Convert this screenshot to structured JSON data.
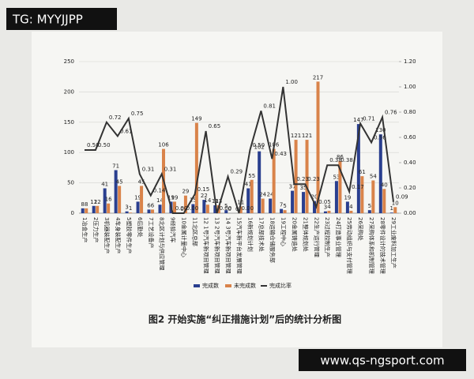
{
  "chart_data": {
    "type": "bar-line",
    "title": "图2  开始实施“纠正措施计划”后的统计分析图",
    "categories": [
      "1冶金生产",
      "2压力生产",
      "3机器装配生产",
      "4车身装配生产",
      "5塑胶零件生产",
      "6后勤处",
      "7工艺设备产",
      "8北区计划与供应管理",
      "9经验汽车",
      "10金属计量中心",
      "11北区总部",
      "12 1号汽车新项目管理",
      "13 2号汽车新项目管理",
      "14 3号汽车新项目管理",
      "15汽车新平台发展管理",
      "16新规划计划",
      "17总部技术处",
      "18运输仓储服务部",
      "19工程中心",
      "20金属铸造处",
      "21整体规划处",
      "22生产运行管理",
      "23过程控制生产",
      "24打造事业管理",
      "25劳动组织与支付管理",
      "26采购处",
      "27采购体系和机制管理",
      "28零件设计的技术管理",
      "29工业废料加工生产"
    ],
    "series": [
      {
        "name": "完成数",
        "color": "#2a3f8f",
        "values": [
          8,
          12,
          41,
          71,
          3,
          19,
          6,
          14,
          19,
          0,
          15,
          22,
          13,
          5,
          0,
          41,
          102,
          24,
          7,
          37,
          35,
          20,
          3,
          53,
          19,
          147,
          5,
          130,
          1
        ]
      },
      {
        "name": "未完成数",
        "color": "#d9834a",
        "values": [
          8,
          12,
          16,
          45,
          1,
          45,
          6,
          106,
          19,
          29,
          149,
          14,
          13,
          0,
          11,
          55,
          24,
          106,
          5,
          121,
          121,
          217,
          4,
          86,
          4,
          61,
          54,
          40,
          10
        ]
      },
      {
        "name": "完成比率",
        "color": "#333333",
        "axis": "y2",
        "values": [
          0.5,
          0.5,
          0.72,
          0.61,
          0.75,
          0.31,
          0.14,
          0.31,
          0,
          0,
          0.15,
          0.65,
          0,
          0.29,
          0,
          0.5,
          0.81,
          0.43,
          1,
          0.23,
          0.23,
          0.05,
          0.38,
          0.38,
          0.17,
          0.71,
          0.56,
          0.76,
          0.09
        ],
        "value_labels": [
          "0.50",
          "0.50",
          "0.72",
          "0.61",
          "0.75",
          "0.31",
          "0.14",
          "0.31",
          "0.00",
          "0.00",
          "0.15",
          "0.65",
          "0.00",
          "0.29",
          "0.00",
          "0.50",
          "0.81",
          "0.43",
          "1.00",
          "0.23",
          "0.23",
          "0.05",
          "0.38",
          "0.38",
          "0.17",
          "0.71",
          "0.56",
          "0.76",
          "0.09"
        ]
      }
    ],
    "ylim": [
      0,
      250
    ],
    "yticks": [
      0,
      50,
      100,
      150,
      200,
      250
    ],
    "y2lim": [
      0,
      1.2
    ],
    "y2ticks": [
      {
        "value": 0,
        "label": "0.00"
      },
      {
        "value": 0.2,
        "label": "0.20"
      },
      {
        "value": 0.4,
        "label": "0.40"
      },
      {
        "value": 0.6,
        "label": "0.60"
      },
      {
        "value": 0.8,
        "label": "0.80"
      },
      {
        "value": 1,
        "label": "1.00"
      },
      {
        "value": 1.2,
        "label": "1.20"
      }
    ],
    "grid": true,
    "legend": "bottom"
  },
  "overlays": {
    "top_left": "TG: MYYJJPP",
    "bottom_right": "www.qs-ngsport.com"
  }
}
